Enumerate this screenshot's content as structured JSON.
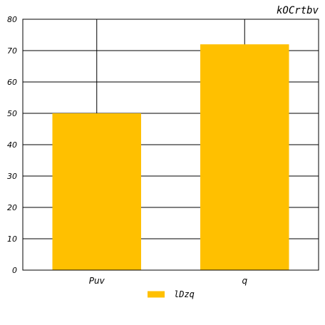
{
  "chart_data": {
    "type": "bar",
    "title": "kOCrtbv",
    "categories": [
      "Puv",
      "q"
    ],
    "series": [
      {
        "name": "lDzq",
        "values": [
          50,
          72
        ]
      }
    ],
    "ylim": [
      0,
      80
    ],
    "yticks": [
      0,
      10,
      20,
      30,
      40,
      50,
      60,
      70,
      80
    ],
    "grid": true,
    "legend_position": "bottom-center",
    "colors": {
      "bar": "#FFC000",
      "grid": "#000000",
      "axis": "#000000"
    }
  }
}
